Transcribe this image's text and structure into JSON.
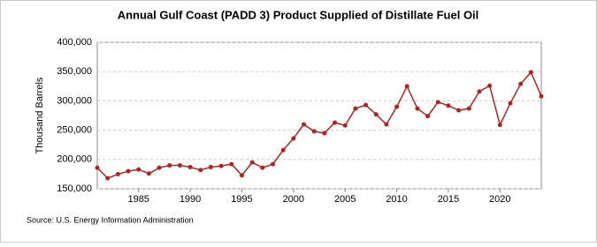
{
  "chart_data": {
    "type": "line",
    "title": "Annual Gulf Coast (PADD 3) Product Supplied of Distillate Fuel Oil",
    "y_label": "Thousand Barrels",
    "source": "Source: U.S. Energy Information Administration",
    "x": [
      1981,
      1982,
      1983,
      1984,
      1985,
      1986,
      1987,
      1988,
      1989,
      1990,
      1991,
      1992,
      1993,
      1994,
      1995,
      1996,
      1997,
      1998,
      1999,
      2000,
      2001,
      2002,
      2003,
      2004,
      2005,
      2006,
      2007,
      2008,
      2009,
      2010,
      2011,
      2012,
      2013,
      2014,
      2015,
      2016,
      2017,
      2018,
      2019,
      2020,
      2021,
      2022,
      2023,
      2024
    ],
    "series": [
      {
        "name": "Gulf Coast (PADD 3) Product Supplied of Distillate Fuel Oil",
        "color": "#b22222",
        "values": [
          186000,
          168000,
          175000,
          180000,
          183000,
          176000,
          186000,
          190000,
          190000,
          187000,
          182000,
          187000,
          189000,
          192000,
          173000,
          195000,
          186000,
          192000,
          216000,
          236000,
          260000,
          248000,
          245000,
          263000,
          258000,
          287000,
          293000,
          277000,
          260000,
          290000,
          325000,
          287000,
          274000,
          298000,
          292000,
          284000,
          287000,
          316000,
          326000,
          259000,
          296000,
          329000,
          349000,
          308000
        ]
      }
    ],
    "xlim": [
      1981,
      2024
    ],
    "xticks": [
      1985,
      1990,
      1995,
      2000,
      2005,
      2010,
      2015,
      2020
    ],
    "ylim": [
      150000,
      400000
    ],
    "yticks": [
      {
        "value": 150000,
        "label": "150,000"
      },
      {
        "value": 200000,
        "label": "200,000"
      },
      {
        "value": 250000,
        "label": "250,000"
      },
      {
        "value": 300000,
        "label": "300,000"
      },
      {
        "value": 350000,
        "label": "350,000"
      },
      {
        "value": 400000,
        "label": "400,000"
      }
    ],
    "grid": true
  }
}
